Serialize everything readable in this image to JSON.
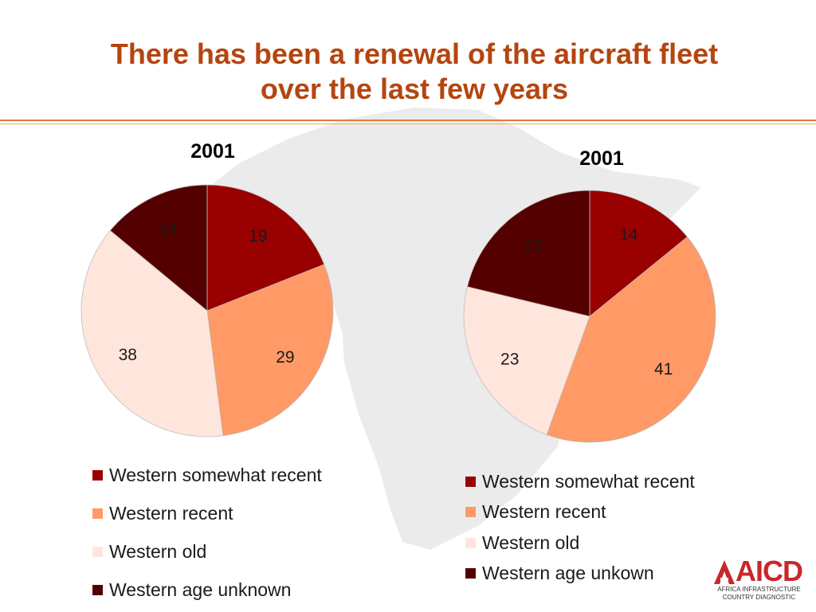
{
  "title_lines": [
    "There has been a renewal of the aircraft fleet",
    "over the last few years"
  ],
  "colors": {
    "title": "#b5450f",
    "rule": "#e07a3a",
    "background_map": "#ebebeb",
    "series": [
      "#990000",
      "#ff9966",
      "#ffe6dd",
      "#550000"
    ]
  },
  "chart_data": [
    {
      "type": "pie",
      "title": "2001",
      "categories": [
        "Western somewhat recent",
        "Western recent",
        "Western old",
        "Western age unknown"
      ],
      "values": [
        19,
        29,
        38,
        14
      ],
      "legend_placement": "bottom"
    },
    {
      "type": "pie",
      "title": "2001",
      "categories": [
        "Western somewhat recent",
        "Western recent",
        "Western old",
        "Western age unkown"
      ],
      "values": [
        14,
        41,
        23,
        21
      ],
      "legend_placement": "bottom"
    }
  ],
  "logo": {
    "mark": "AICD",
    "subtitle_lines": [
      "AFRICA INFRASTRUCTURE",
      "COUNTRY DIAGNOSTIC"
    ]
  }
}
